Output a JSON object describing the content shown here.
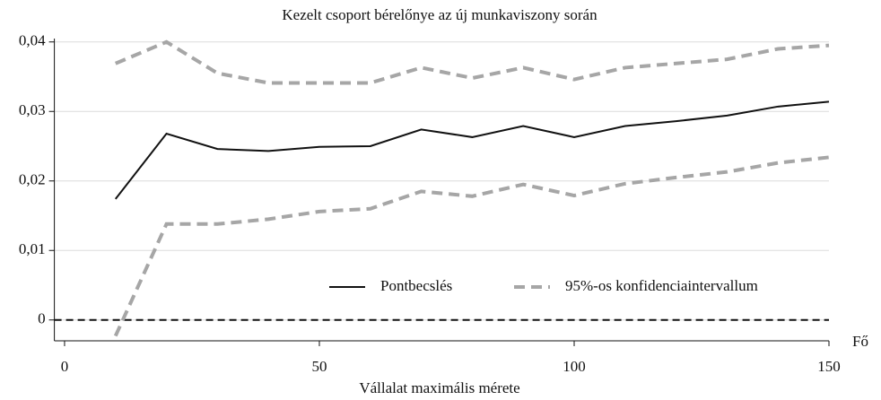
{
  "chart_data": {
    "type": "line",
    "title": "Kezelt csoport bérelőnye az új munkaviszony során",
    "xlabel": "Vállalat maximális mérete",
    "xunit": "Fő",
    "x": [
      10,
      20,
      30,
      40,
      50,
      60,
      70,
      80,
      90,
      100,
      110,
      120,
      130,
      140,
      150
    ],
    "series": [
      {
        "name": "Pontbecslés",
        "color": "#111111",
        "dash": false,
        "values": [
          0.0174,
          0.0268,
          0.0246,
          0.0243,
          0.0249,
          0.025,
          0.0274,
          0.0263,
          0.0279,
          0.0263,
          0.0279,
          0.0286,
          0.0294,
          0.0307,
          0.0314
        ]
      },
      {
        "name": "95%-os konfidenciaintervallum",
        "color": "#a6a6a6",
        "dash": true,
        "values": [
          0.0369,
          0.04,
          0.0355,
          0.0341,
          0.0341,
          0.0341,
          0.0363,
          0.0348,
          0.0363,
          0.0346,
          0.0363,
          0.0369,
          0.0375,
          0.039,
          0.0395
        ]
      },
      {
        "color": "#a6a6a6",
        "dash": true,
        "values": [
          -0.0023,
          0.0138,
          0.0138,
          0.0145,
          0.0156,
          0.016,
          0.0185,
          0.0178,
          0.0195,
          0.0179,
          0.0196,
          0.0205,
          0.0213,
          0.0226,
          0.0234
        ]
      }
    ],
    "xlim": [
      -2,
      150
    ],
    "xticks": [
      0,
      50,
      100,
      150
    ],
    "ylim": [
      -0.003,
      0.041
    ],
    "yticks": [
      0,
      {
        "value": 0.01,
        "label": "0,01"
      },
      {
        "value": 0.02,
        "label": "0,02"
      },
      {
        "value": 0.03,
        "label": "0,03"
      },
      {
        "value": 0.04,
        "label": "0,04"
      }
    ],
    "reference_line": 0,
    "grid": true
  }
}
